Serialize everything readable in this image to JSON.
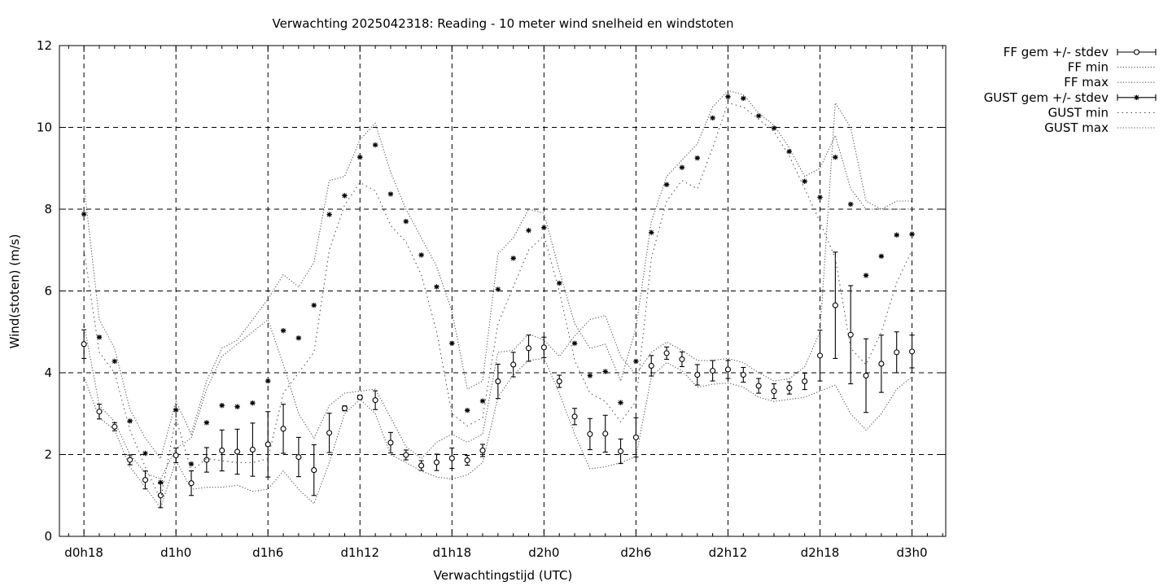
{
  "chart_data": {
    "type": "line",
    "title": "Verwachting 2025042318: Reading - 10 meter wind snelheid en windstoten",
    "xlabel": "Verwachtingstijd (UTC)",
    "ylabel": "Wind(stoten) (m/s)",
    "ylim": [
      0,
      12
    ],
    "yticks": [
      0,
      2,
      4,
      6,
      8,
      10,
      12
    ],
    "xlim": [
      -1.6,
      56.2
    ],
    "xticks": [
      {
        "value": 0,
        "label": "d0h18"
      },
      {
        "value": 6,
        "label": "d1h0"
      },
      {
        "value": 12,
        "label": "d1h6"
      },
      {
        "value": 18,
        "label": "d1h12"
      },
      {
        "value": 24,
        "label": "d1h18"
      },
      {
        "value": 30,
        "label": "d2h0"
      },
      {
        "value": 36,
        "label": "d2h6"
      },
      {
        "value": 42,
        "label": "d2h12"
      },
      {
        "value": 48,
        "label": "d2h18"
      },
      {
        "value": 54,
        "label": "d3h0"
      }
    ],
    "grid": true,
    "legend_position": "outside-top-right",
    "x": [
      0,
      1,
      2,
      3,
      4,
      5,
      6,
      7,
      8,
      9,
      10,
      11,
      12,
      13,
      14,
      15,
      16,
      17,
      18,
      19,
      20,
      21,
      22,
      23,
      24,
      25,
      26,
      27,
      28,
      29,
      30,
      31,
      32,
      33,
      34,
      35,
      36,
      37,
      38,
      39,
      40,
      41,
      42,
      43,
      44,
      45,
      46,
      47,
      48,
      49,
      50,
      51,
      52,
      53,
      54
    ],
    "series": [
      {
        "name": "FF gem +/- stdev",
        "style": "errorbars-circle",
        "values": [
          4.7,
          3.05,
          2.68,
          1.87,
          1.38,
          1.0,
          1.98,
          1.3,
          1.87,
          2.1,
          2.07,
          2.12,
          2.25,
          2.63,
          1.94,
          1.62,
          2.53,
          3.13,
          3.4,
          3.33,
          2.29,
          1.99,
          1.73,
          1.81,
          1.91,
          1.86,
          2.1,
          3.79,
          4.2,
          4.6,
          4.62,
          3.79,
          2.93,
          2.5,
          2.51,
          2.08,
          2.42,
          4.17,
          4.48,
          4.33,
          3.95,
          4.05,
          4.08,
          3.95,
          3.68,
          3.55,
          3.63,
          3.79,
          4.42,
          5.65,
          4.93,
          3.93,
          4.22,
          4.5,
          4.52
        ],
        "stdev": [
          0.35,
          0.18,
          0.1,
          0.12,
          0.22,
          0.3,
          0.18,
          0.3,
          0.3,
          0.5,
          0.55,
          0.65,
          0.8,
          0.6,
          0.48,
          0.62,
          0.48,
          0.06,
          0.05,
          0.23,
          0.25,
          0.12,
          0.12,
          0.2,
          0.25,
          0.12,
          0.15,
          0.42,
          0.3,
          0.32,
          0.25,
          0.15,
          0.2,
          0.38,
          0.45,
          0.3,
          0.48,
          0.25,
          0.15,
          0.18,
          0.25,
          0.25,
          0.22,
          0.18,
          0.18,
          0.18,
          0.15,
          0.2,
          0.62,
          1.3,
          1.2,
          0.9,
          0.7,
          0.5,
          0.4
        ]
      },
      {
        "name": "FF min",
        "style": "dotted",
        "values": [
          3.9,
          2.9,
          2.6,
          1.7,
          1.2,
          0.7,
          1.85,
          1.15,
          1.2,
          1.2,
          1.25,
          1.1,
          1.15,
          1.6,
          1.15,
          0.8,
          1.8,
          3.0,
          3.35,
          3.0,
          2.0,
          1.8,
          1.6,
          1.45,
          1.4,
          1.5,
          1.8,
          3.4,
          3.95,
          4.3,
          4.35,
          3.5,
          2.5,
          1.65,
          1.7,
          1.8,
          1.95,
          3.9,
          4.25,
          4.05,
          3.65,
          3.72,
          3.75,
          3.65,
          3.4,
          3.3,
          3.35,
          3.4,
          3.55,
          3.7,
          3.0,
          2.6,
          3.0,
          3.6,
          3.9
        ]
      },
      {
        "name": "FF max",
        "style": "dotted",
        "values": [
          5.2,
          3.2,
          2.8,
          2.0,
          1.55,
          1.4,
          2.15,
          2.4,
          3.6,
          4.4,
          4.7,
          5.0,
          5.3,
          4.2,
          3.0,
          2.4,
          3.2,
          3.5,
          3.55,
          3.6,
          2.9,
          2.2,
          1.9,
          2.3,
          2.5,
          2.3,
          2.5,
          4.5,
          4.55,
          4.95,
          4.8,
          4.4,
          4.9,
          5.3,
          5.4,
          4.4,
          3.95,
          4.5,
          4.75,
          4.55,
          4.3,
          4.3,
          4.35,
          4.25,
          4.0,
          3.8,
          3.85,
          4.15,
          5.0,
          10.6,
          10.0,
          8.2,
          8.0,
          8.2,
          8.2
        ]
      },
      {
        "name": "GUST gem +/- stdev",
        "style": "errorbars-star",
        "values": [
          7.88,
          4.87,
          4.28,
          2.82,
          2.03,
          1.32,
          3.09,
          1.77,
          2.78,
          3.2,
          3.17,
          3.26,
          3.8,
          5.03,
          4.85,
          5.65,
          7.87,
          8.33,
          9.27,
          9.57,
          8.37,
          7.7,
          6.88,
          6.1,
          4.72,
          3.08,
          3.31,
          6.04,
          6.8,
          7.48,
          7.55,
          6.19,
          4.72,
          3.93,
          4.03,
          3.27,
          4.28,
          7.43,
          8.6,
          9.02,
          9.25,
          10.23,
          10.75,
          10.71,
          10.28,
          9.98,
          9.41,
          8.68,
          8.29,
          9.27,
          8.12,
          6.38,
          6.85,
          7.37,
          7.39
        ]
      },
      {
        "name": "GUST min",
        "style": "dotted",
        "values": [
          7.0,
          4.5,
          4.0,
          2.6,
          1.7,
          0.9,
          2.9,
          1.6,
          1.9,
          1.85,
          1.8,
          1.8,
          1.9,
          3.5,
          4.0,
          4.5,
          7.0,
          8.1,
          8.65,
          8.45,
          7.6,
          7.2,
          6.4,
          5.0,
          3.0,
          2.7,
          2.9,
          5.2,
          6.1,
          7.0,
          7.35,
          6.0,
          4.3,
          3.5,
          3.3,
          2.8,
          3.3,
          6.8,
          8.2,
          8.7,
          8.5,
          9.5,
          10.6,
          10.5,
          10.2,
          9.9,
          9.3,
          8.5,
          7.7,
          6.8,
          4.6,
          4.2,
          5.0,
          6.2,
          7.0
        ]
      },
      {
        "name": "GUST max",
        "style": "dotted",
        "values": [
          8.6,
          5.3,
          4.6,
          3.1,
          2.4,
          1.9,
          3.3,
          2.5,
          3.8,
          4.6,
          4.8,
          5.3,
          5.8,
          6.4,
          6.1,
          6.7,
          8.7,
          8.8,
          9.7,
          10.1,
          8.9,
          8.0,
          7.3,
          6.6,
          5.5,
          3.6,
          3.8,
          6.9,
          7.3,
          8.0,
          7.9,
          6.5,
          5.2,
          4.6,
          4.7,
          3.8,
          5.1,
          7.7,
          8.8,
          9.2,
          9.6,
          10.5,
          10.9,
          10.8,
          10.35,
          10.05,
          9.5,
          8.8,
          9.0,
          9.8,
          8.5,
          8.0,
          8.0,
          8.0,
          8.0
        ]
      }
    ]
  }
}
